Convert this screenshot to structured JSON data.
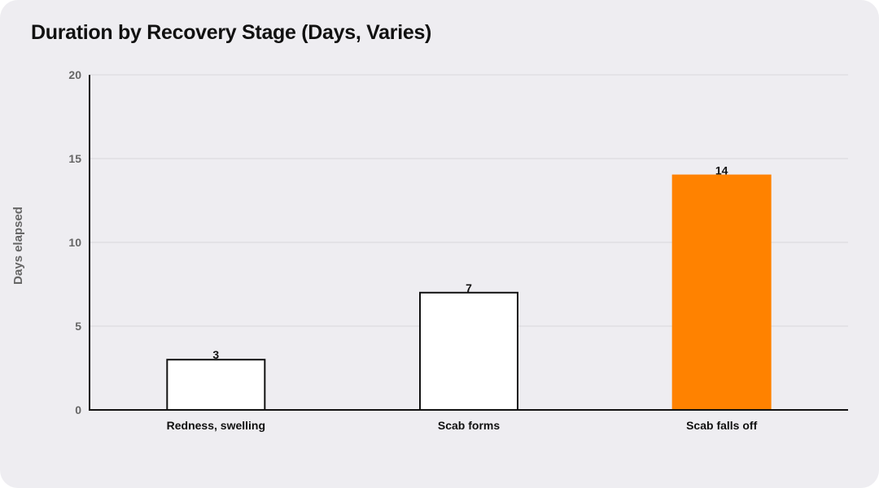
{
  "chart_data": {
    "type": "bar",
    "title": "Duration by Recovery Stage (Days, Varies)",
    "xlabel": "",
    "ylabel": "Days elapsed",
    "categories": [
      "Redness, swelling",
      "Scab forms",
      "Scab falls off"
    ],
    "values": [
      3,
      7,
      14
    ],
    "ylim": [
      0,
      20
    ],
    "yticks": [
      0,
      5,
      10,
      15,
      20
    ],
    "grid": true,
    "bar_fills": [
      "#ffffff",
      "#ffffff",
      "#ff8200"
    ],
    "bar_strokes": [
      "#111111",
      "#111111",
      "#ff8200"
    ],
    "highlight_color": "#ff8200",
    "gridline_color": "#d8d7dc",
    "axis_color": "#111111",
    "background": "#eeedf1"
  }
}
